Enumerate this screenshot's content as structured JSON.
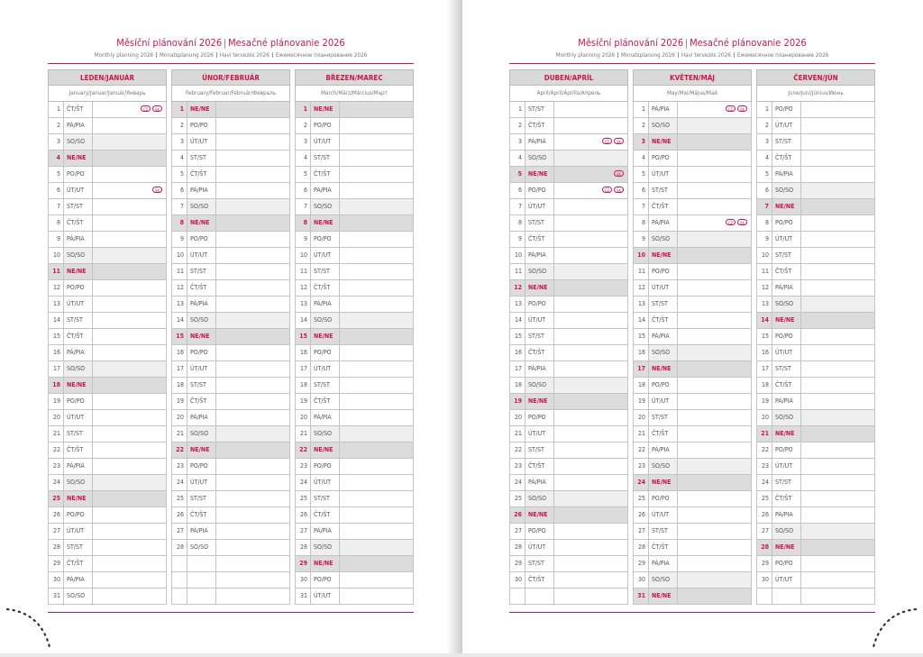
{
  "pages": [
    {
      "title": [
        "Měsíční plánování 2026",
        "Mesačné plánovanie 2026"
      ],
      "subtitle": [
        "Monthly planning 2026",
        "Monatsplanung 2026",
        "Havi tervezés 2026",
        "Ежемесячное планирование 2026"
      ],
      "months": [
        {
          "name": "LEDEN/JANUÁR",
          "subname": "January/Januar/Január/Январь",
          "days": [
            {
              "day": 1,
              "weekday": "ČT/ŠT",
              "holidays": [
                "CZ",
                "SK"
              ]
            },
            {
              "day": 2,
              "weekday": "PÁ/PIA"
            },
            {
              "day": 3,
              "weekday": "SO/SO"
            },
            {
              "day": 4,
              "weekday": "NE/NE",
              "sunday": true
            },
            {
              "day": 5,
              "weekday": "PO/PO"
            },
            {
              "day": 6,
              "weekday": "ÚT/UT",
              "holidays": [
                "SK"
              ]
            },
            {
              "day": 7,
              "weekday": "ST/ST"
            },
            {
              "day": 8,
              "weekday": "ČT/ŠT"
            },
            {
              "day": 9,
              "weekday": "PÁ/PIA"
            },
            {
              "day": 10,
              "weekday": "SO/SO"
            },
            {
              "day": 11,
              "weekday": "NE/NE",
              "sunday": true
            },
            {
              "day": 12,
              "weekday": "PO/PO"
            },
            {
              "day": 13,
              "weekday": "ÚT/UT"
            },
            {
              "day": 14,
              "weekday": "ST/ST"
            },
            {
              "day": 15,
              "weekday": "ČT/ŠT"
            },
            {
              "day": 16,
              "weekday": "PÁ/PIA"
            },
            {
              "day": 17,
              "weekday": "SO/SO"
            },
            {
              "day": 18,
              "weekday": "NE/NE",
              "sunday": true
            },
            {
              "day": 19,
              "weekday": "PO/PO"
            },
            {
              "day": 20,
              "weekday": "ÚT/UT"
            },
            {
              "day": 21,
              "weekday": "ST/ST"
            },
            {
              "day": 22,
              "weekday": "ČT/ŠT"
            },
            {
              "day": 23,
              "weekday": "PÁ/PIA"
            },
            {
              "day": 24,
              "weekday": "SO/SO"
            },
            {
              "day": 25,
              "weekday": "NE/NE",
              "sunday": true
            },
            {
              "day": 26,
              "weekday": "PO/PO"
            },
            {
              "day": 27,
              "weekday": "ÚT/UT"
            },
            {
              "day": 28,
              "weekday": "ST/ST"
            },
            {
              "day": 29,
              "weekday": "ČT/ŠT"
            },
            {
              "day": 30,
              "weekday": "PÁ/PIA"
            },
            {
              "day": 31,
              "weekday": "SO/SO"
            }
          ]
        },
        {
          "name": "ÚNOR/FEBRUÁR",
          "subname": "February/Februar/Február/Февраль",
          "days": [
            {
              "day": 1,
              "weekday": "NE/NE",
              "sunday": true
            },
            {
              "day": 2,
              "weekday": "PO/PO"
            },
            {
              "day": 3,
              "weekday": "ÚT/UT"
            },
            {
              "day": 4,
              "weekday": "ST/ST"
            },
            {
              "day": 5,
              "weekday": "ČT/ŠT"
            },
            {
              "day": 6,
              "weekday": "PÁ/PIA"
            },
            {
              "day": 7,
              "weekday": "SO/SO"
            },
            {
              "day": 8,
              "weekday": "NE/NE",
              "sunday": true
            },
            {
              "day": 9,
              "weekday": "PO/PO"
            },
            {
              "day": 10,
              "weekday": "ÚT/UT"
            },
            {
              "day": 11,
              "weekday": "ST/ST"
            },
            {
              "day": 12,
              "weekday": "ČT/ŠT"
            },
            {
              "day": 13,
              "weekday": "PÁ/PIA"
            },
            {
              "day": 14,
              "weekday": "SO/SO"
            },
            {
              "day": 15,
              "weekday": "NE/NE",
              "sunday": true
            },
            {
              "day": 16,
              "weekday": "PO/PO"
            },
            {
              "day": 17,
              "weekday": "ÚT/UT"
            },
            {
              "day": 18,
              "weekday": "ST/ST"
            },
            {
              "day": 19,
              "weekday": "ČT/ŠT"
            },
            {
              "day": 20,
              "weekday": "PÁ/PIA"
            },
            {
              "day": 21,
              "weekday": "SO/SO"
            },
            {
              "day": 22,
              "weekday": "NE/NE",
              "sunday": true
            },
            {
              "day": 23,
              "weekday": "PO/PO"
            },
            {
              "day": 24,
              "weekday": "ÚT/UT"
            },
            {
              "day": 25,
              "weekday": "ST/ST"
            },
            {
              "day": 26,
              "weekday": "ČT/ŠT"
            },
            {
              "day": 27,
              "weekday": "PÁ/PIA"
            },
            {
              "day": 28,
              "weekday": "SO/SO"
            }
          ]
        },
        {
          "name": "BŘEZEN/MAREC",
          "subname": "March/März/Március/Март",
          "days": [
            {
              "day": 1,
              "weekday": "NE/NE",
              "sunday": true
            },
            {
              "day": 2,
              "weekday": "PO/PO"
            },
            {
              "day": 3,
              "weekday": "ÚT/UT"
            },
            {
              "day": 4,
              "weekday": "ST/ST"
            },
            {
              "day": 5,
              "weekday": "ČT/ŠT"
            },
            {
              "day": 6,
              "weekday": "PÁ/PIA"
            },
            {
              "day": 7,
              "weekday": "SO/SO"
            },
            {
              "day": 8,
              "weekday": "NE/NE",
              "sunday": true
            },
            {
              "day": 9,
              "weekday": "PO/PO"
            },
            {
              "day": 10,
              "weekday": "ÚT/UT"
            },
            {
              "day": 11,
              "weekday": "ST/ST"
            },
            {
              "day": 12,
              "weekday": "ČT/ŠT"
            },
            {
              "day": 13,
              "weekday": "PÁ/PIA"
            },
            {
              "day": 14,
              "weekday": "SO/SO"
            },
            {
              "day": 15,
              "weekday": "NE/NE",
              "sunday": true
            },
            {
              "day": 16,
              "weekday": "PO/PO"
            },
            {
              "day": 17,
              "weekday": "ÚT/UT"
            },
            {
              "day": 18,
              "weekday": "ST/ST"
            },
            {
              "day": 19,
              "weekday": "ČT/ŠT"
            },
            {
              "day": 20,
              "weekday": "PÁ/PIA"
            },
            {
              "day": 21,
              "weekday": "SO/SO"
            },
            {
              "day": 22,
              "weekday": "NE/NE",
              "sunday": true
            },
            {
              "day": 23,
              "weekday": "PO/PO"
            },
            {
              "day": 24,
              "weekday": "ÚT/UT"
            },
            {
              "day": 25,
              "weekday": "ST/ST"
            },
            {
              "day": 26,
              "weekday": "ČT/ŠT"
            },
            {
              "day": 27,
              "weekday": "PÁ/PIA"
            },
            {
              "day": 28,
              "weekday": "SO/SO"
            },
            {
              "day": 29,
              "weekday": "NE/NE",
              "sunday": true
            },
            {
              "day": 30,
              "weekday": "PO/PO"
            },
            {
              "day": 31,
              "weekday": "ÚT/UT"
            }
          ]
        }
      ]
    },
    {
      "title": [
        "Měsíční plánování 2026",
        "Mesačné plánovanie 2026"
      ],
      "subtitle": [
        "Monthly planning 2026",
        "Monatsplanung 2026",
        "Havi tervezés 2026",
        "Ежемесячное планирование 2026"
      ],
      "months": [
        {
          "name": "DUBEN/APRÍL",
          "subname": "April/April/Április/Апрель",
          "days": [
            {
              "day": 1,
              "weekday": "ST/ST"
            },
            {
              "day": 2,
              "weekday": "ČT/ŠT"
            },
            {
              "day": 3,
              "weekday": "PÁ/PIA",
              "holidays": [
                "CZ",
                "SK"
              ]
            },
            {
              "day": 4,
              "weekday": "SO/SO"
            },
            {
              "day": 5,
              "weekday": "NE/NE",
              "sunday": true,
              "holidays": [
                "SK"
              ]
            },
            {
              "day": 6,
              "weekday": "PO/PO",
              "holidays": [
                "CZ",
                "SK"
              ]
            },
            {
              "day": 7,
              "weekday": "ÚT/UT"
            },
            {
              "day": 8,
              "weekday": "ST/ST"
            },
            {
              "day": 9,
              "weekday": "ČT/ŠT"
            },
            {
              "day": 10,
              "weekday": "PÁ/PIA"
            },
            {
              "day": 11,
              "weekday": "SO/SO"
            },
            {
              "day": 12,
              "weekday": "NE/NE",
              "sunday": true
            },
            {
              "day": 13,
              "weekday": "PO/PO"
            },
            {
              "day": 14,
              "weekday": "ÚT/UT"
            },
            {
              "day": 15,
              "weekday": "ST/ST"
            },
            {
              "day": 16,
              "weekday": "ČT/ŠT"
            },
            {
              "day": 17,
              "weekday": "PÁ/PIA"
            },
            {
              "day": 18,
              "weekday": "SO/SO"
            },
            {
              "day": 19,
              "weekday": "NE/NE",
              "sunday": true
            },
            {
              "day": 20,
              "weekday": "PO/PO"
            },
            {
              "day": 21,
              "weekday": "ÚT/UT"
            },
            {
              "day": 22,
              "weekday": "ST/ST"
            },
            {
              "day": 23,
              "weekday": "ČT/ŠT"
            },
            {
              "day": 24,
              "weekday": "PÁ/PIA"
            },
            {
              "day": 25,
              "weekday": "SO/SO"
            },
            {
              "day": 26,
              "weekday": "NE/NE",
              "sunday": true
            },
            {
              "day": 27,
              "weekday": "PO/PO"
            },
            {
              "day": 28,
              "weekday": "ÚT/UT"
            },
            {
              "day": 29,
              "weekday": "ST/ST"
            },
            {
              "day": 30,
              "weekday": "ČT/ŠT"
            }
          ]
        },
        {
          "name": "KVĚTEN/MÁJ",
          "subname": "May/Mai/Május/Май",
          "days": [
            {
              "day": 1,
              "weekday": "PÁ/PIA",
              "holidays": [
                "CZ",
                "SK"
              ]
            },
            {
              "day": 2,
              "weekday": "SO/SO"
            },
            {
              "day": 3,
              "weekday": "NE/NE",
              "sunday": true
            },
            {
              "day": 4,
              "weekday": "PO/PO"
            },
            {
              "day": 5,
              "weekday": "ÚT/UT"
            },
            {
              "day": 6,
              "weekday": "ST/ST"
            },
            {
              "day": 7,
              "weekday": "ČT/ŠT"
            },
            {
              "day": 8,
              "weekday": "PÁ/PIA",
              "holidays": [
                "CZ",
                "SK"
              ]
            },
            {
              "day": 9,
              "weekday": "SO/SO"
            },
            {
              "day": 10,
              "weekday": "NE/NE",
              "sunday": true
            },
            {
              "day": 11,
              "weekday": "PO/PO"
            },
            {
              "day": 12,
              "weekday": "ÚT/UT"
            },
            {
              "day": 13,
              "weekday": "ST/ST"
            },
            {
              "day": 14,
              "weekday": "ČT/ŠT"
            },
            {
              "day": 15,
              "weekday": "PÁ/PIA"
            },
            {
              "day": 16,
              "weekday": "SO/SO"
            },
            {
              "day": 17,
              "weekday": "NE/NE",
              "sunday": true
            },
            {
              "day": 18,
              "weekday": "PO/PO"
            },
            {
              "day": 19,
              "weekday": "ÚT/UT"
            },
            {
              "day": 20,
              "weekday": "ST/ST"
            },
            {
              "day": 21,
              "weekday": "ČT/ŠT"
            },
            {
              "day": 22,
              "weekday": "PÁ/PIA"
            },
            {
              "day": 23,
              "weekday": "SO/SO"
            },
            {
              "day": 24,
              "weekday": "NE/NE",
              "sunday": true
            },
            {
              "day": 25,
              "weekday": "PO/PO"
            },
            {
              "day": 26,
              "weekday": "ÚT/UT"
            },
            {
              "day": 27,
              "weekday": "ST/ST"
            },
            {
              "day": 28,
              "weekday": "ČT/ŠT"
            },
            {
              "day": 29,
              "weekday": "PÁ/PIA"
            },
            {
              "day": 30,
              "weekday": "SO/SO"
            },
            {
              "day": 31,
              "weekday": "NE/NE",
              "sunday": true
            }
          ]
        },
        {
          "name": "ČERVEN/JÚN",
          "subname": "June/Juni/Június/Июнь",
          "days": [
            {
              "day": 1,
              "weekday": "PO/PO"
            },
            {
              "day": 2,
              "weekday": "ÚT/UT"
            },
            {
              "day": 3,
              "weekday": "ST/ST"
            },
            {
              "day": 4,
              "weekday": "ČT/ŠT"
            },
            {
              "day": 5,
              "weekday": "PÁ/PIA"
            },
            {
              "day": 6,
              "weekday": "SO/SO"
            },
            {
              "day": 7,
              "weekday": "NE/NE",
              "sunday": true
            },
            {
              "day": 8,
              "weekday": "PO/PO"
            },
            {
              "day": 9,
              "weekday": "ÚT/UT"
            },
            {
              "day": 10,
              "weekday": "ST/ST"
            },
            {
              "day": 11,
              "weekday": "ČT/ŠT"
            },
            {
              "day": 12,
              "weekday": "PÁ/PIA"
            },
            {
              "day": 13,
              "weekday": "SO/SO"
            },
            {
              "day": 14,
              "weekday": "NE/NE",
              "sunday": true
            },
            {
              "day": 15,
              "weekday": "PO/PO"
            },
            {
              "day": 16,
              "weekday": "ÚT/UT"
            },
            {
              "day": 17,
              "weekday": "ST/ST"
            },
            {
              "day": 18,
              "weekday": "ČT/ŠT"
            },
            {
              "day": 19,
              "weekday": "PÁ/PIA"
            },
            {
              "day": 20,
              "weekday": "SO/SO"
            },
            {
              "day": 21,
              "weekday": "NE/NE",
              "sunday": true
            },
            {
              "day": 22,
              "weekday": "PO/PO"
            },
            {
              "day": 23,
              "weekday": "ÚT/UT"
            },
            {
              "day": 24,
              "weekday": "ST/ST"
            },
            {
              "day": 25,
              "weekday": "ČT/ŠT"
            },
            {
              "day": 26,
              "weekday": "PÁ/PIA"
            },
            {
              "day": 27,
              "weekday": "SO/SO"
            },
            {
              "day": 28,
              "weekday": "NE/NE",
              "sunday": true
            },
            {
              "day": 29,
              "weekday": "PO/PO"
            },
            {
              "day": 30,
              "weekday": "ÚT/UT"
            }
          ]
        }
      ]
    }
  ]
}
